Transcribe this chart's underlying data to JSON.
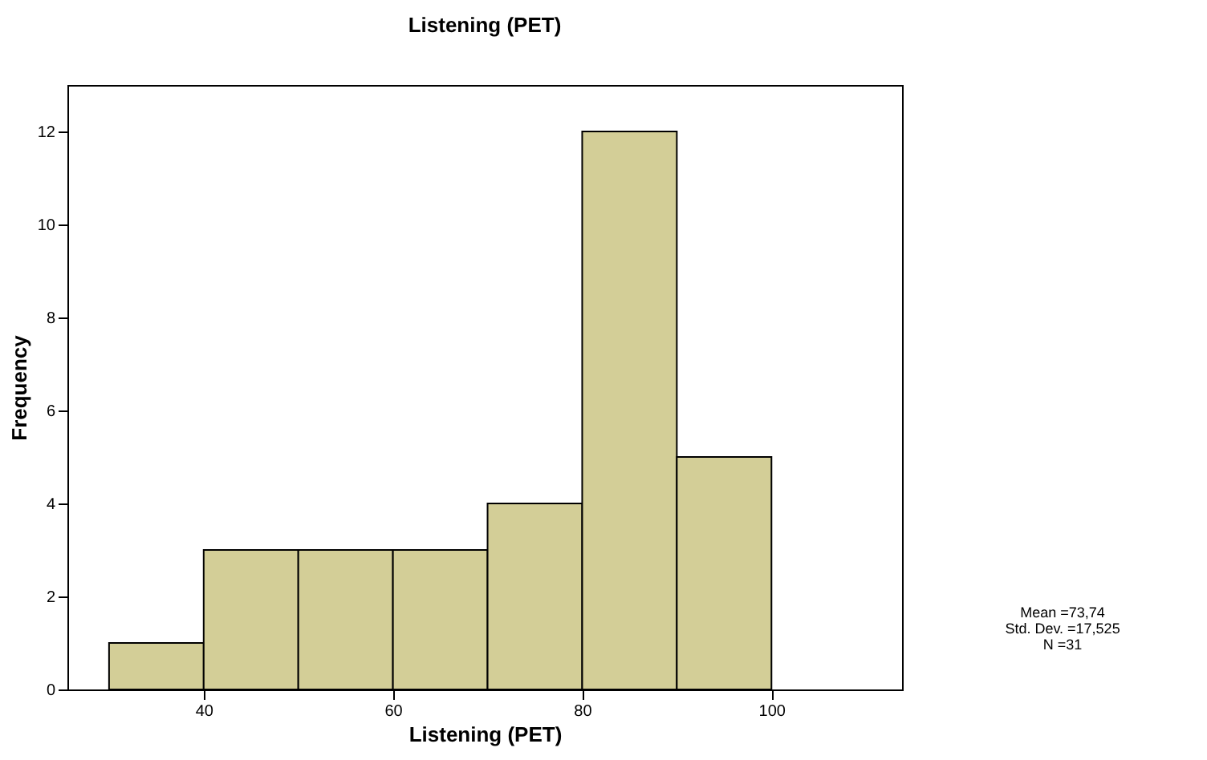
{
  "chart_data": {
    "type": "histogram",
    "title": "Listening (PET)",
    "xlabel": "Listening (PET)",
    "ylabel": "Frequency",
    "bins": [
      30,
      40,
      50,
      60,
      70,
      80,
      90,
      100
    ],
    "values": [
      1,
      3,
      3,
      3,
      4,
      12,
      5
    ],
    "color": "#d3ce97",
    "xlim": [
      25.6,
      113.8
    ],
    "xticks": [
      40,
      60,
      80,
      100
    ],
    "ylim": [
      0,
      13
    ],
    "yticks": [
      0,
      2,
      4,
      6,
      8,
      10,
      12
    ],
    "grid": false,
    "annotations": [
      "Mean =73,74",
      "Std. Dev. =17,525",
      "N =31"
    ]
  }
}
